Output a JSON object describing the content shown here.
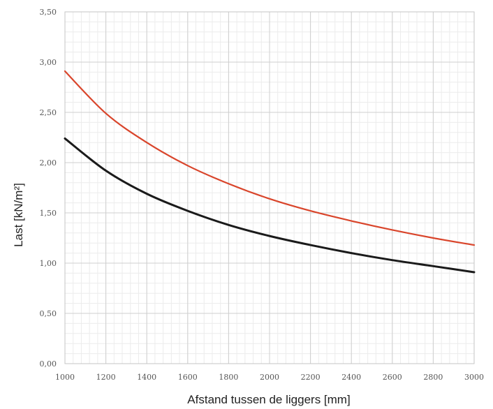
{
  "chart_data": {
    "type": "line",
    "title": "",
    "xlabel": "Afstand tussen de liggers [mm]",
    "ylabel": "Last [kN/m²]",
    "xlim": [
      1000,
      3000
    ],
    "ylim": [
      0,
      3.5
    ],
    "x_ticks": [
      1000,
      1200,
      1400,
      1600,
      1800,
      2000,
      2200,
      2400,
      2600,
      2800,
      3000
    ],
    "x_tick_labels": [
      "1000",
      "1200",
      "1400",
      "1600",
      "1800",
      "2000",
      "2200",
      "2400",
      "2600",
      "2800",
      "3000"
    ],
    "y_ticks": [
      0,
      0.5,
      1,
      1.5,
      2,
      2.5,
      3,
      3.5
    ],
    "y_tick_labels": [
      "0,00",
      "0,50",
      "1,00",
      "1,50",
      "2,00",
      "2,50",
      "3,00",
      "3,50"
    ],
    "grid": true,
    "x": [
      1000,
      1200,
      1400,
      1600,
      1800,
      2000,
      2200,
      2400,
      2600,
      2800,
      3000
    ],
    "series": [
      {
        "color": "#d9452b",
        "values": [
          2.91,
          2.49,
          2.2,
          1.97,
          1.79,
          1.64,
          1.52,
          1.42,
          1.33,
          1.25,
          1.18
        ]
      },
      {
        "color": "#1a1a1a",
        "values": [
          2.24,
          1.92,
          1.69,
          1.52,
          1.38,
          1.27,
          1.18,
          1.1,
          1.03,
          0.97,
          0.91
        ]
      }
    ]
  }
}
